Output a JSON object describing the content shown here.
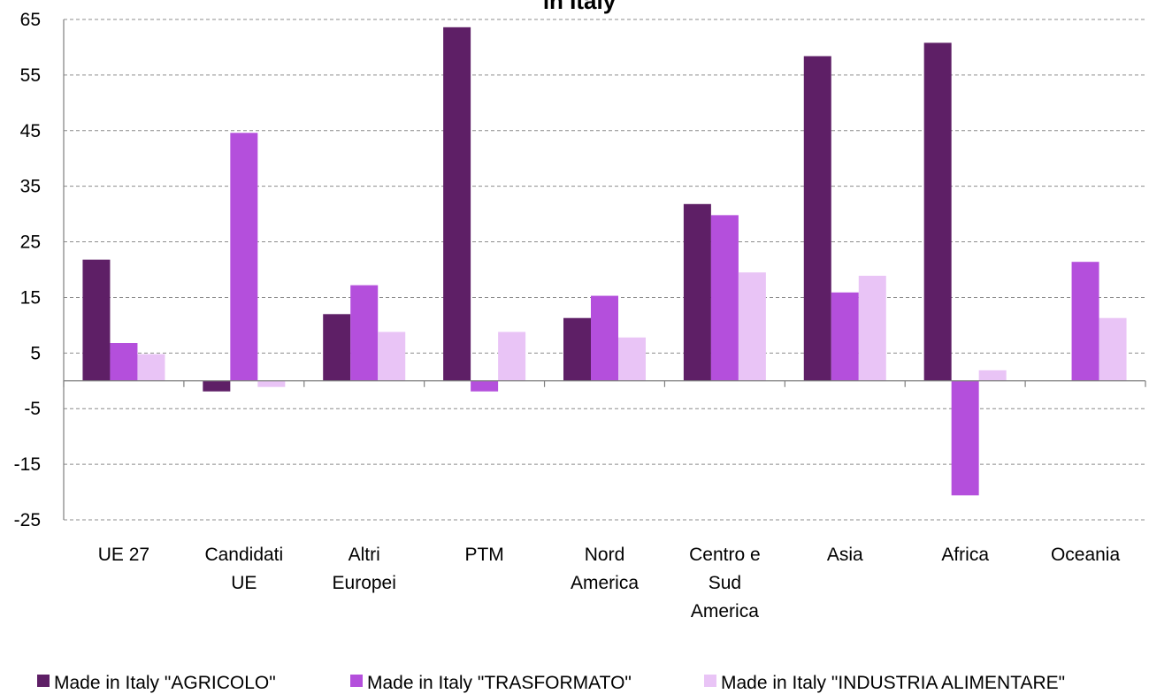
{
  "chart_data": {
    "type": "bar",
    "title": "in Italy",
    "categories": [
      [
        "UE 27"
      ],
      [
        "Candidati",
        "UE"
      ],
      [
        "Altri",
        "Europei"
      ],
      [
        "PTM"
      ],
      [
        "Nord",
        "America"
      ],
      [
        "Centro e",
        "Sud",
        "America"
      ],
      [
        "Asia"
      ],
      [
        "Africa"
      ],
      [
        "Oceania"
      ]
    ],
    "series": [
      {
        "name": "Made in Italy \"AGRICOLO\"",
        "color": "#5e1f66",
        "values": [
          21.8,
          -1.9,
          12.0,
          63.6,
          11.3,
          31.8,
          58.4,
          60.8,
          0
        ]
      },
      {
        "name": "Made in Italy \"TRASFORMATO\"",
        "color": "#b44fdc",
        "values": [
          6.8,
          44.6,
          17.2,
          -1.9,
          15.3,
          29.8,
          15.9,
          -20.6,
          21.4
        ]
      },
      {
        "name": "Made in Italy \"INDUSTRIA ALIMENTARE\"",
        "color": "#e9c4f6",
        "values": [
          4.8,
          -1.1,
          8.8,
          8.8,
          7.8,
          19.5,
          18.9,
          1.9,
          11.3
        ]
      }
    ],
    "yticks": [
      65,
      55,
      45,
      35,
      25,
      15,
      5,
      -5,
      -15,
      -25
    ],
    "ylim": [
      -25,
      65
    ],
    "grid": true,
    "legend_position": "bottom"
  }
}
